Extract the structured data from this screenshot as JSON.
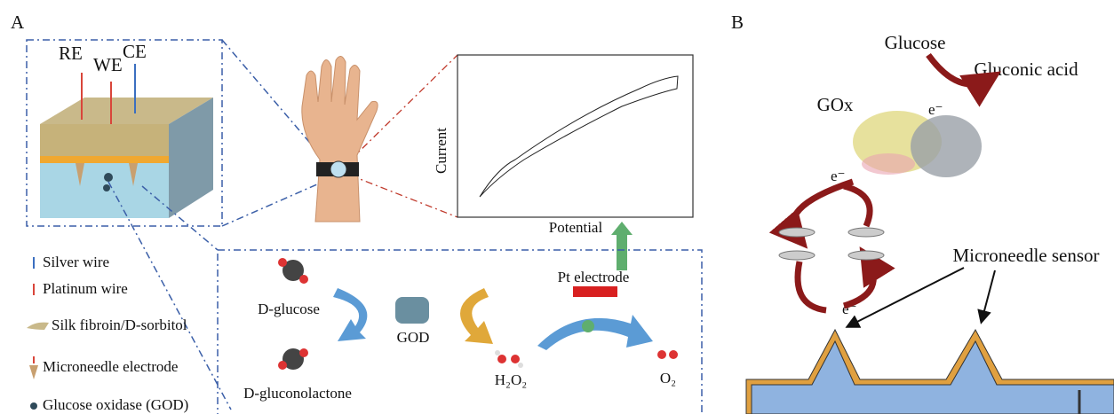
{
  "panel_a": {
    "label": "A",
    "electrodes": [
      "RE",
      "WE",
      "CE"
    ],
    "plot": {
      "y_label": "Current",
      "x_label": "Potential"
    },
    "legend": [
      "Silver wire",
      "Platinum wire",
      "Silk fibroin/D-sorbitol",
      "Microneedle electrode",
      "Glucose oxidase (GOD)"
    ],
    "reaction": {
      "substrate": "D-glucose",
      "enzyme": "GOD",
      "product": "D-gluconolactone",
      "peroxide": "H₂O₂",
      "electrode": "Pt electrode",
      "oxygen": "O₂"
    }
  },
  "panel_b": {
    "label": "B",
    "glucose": "Glucose",
    "gluconic_acid": "Gluconic acid",
    "enzyme": "GOx",
    "electrons": [
      "e⁻",
      "e⁻",
      "e⁻"
    ],
    "sensor": "Microneedle sensor"
  }
}
